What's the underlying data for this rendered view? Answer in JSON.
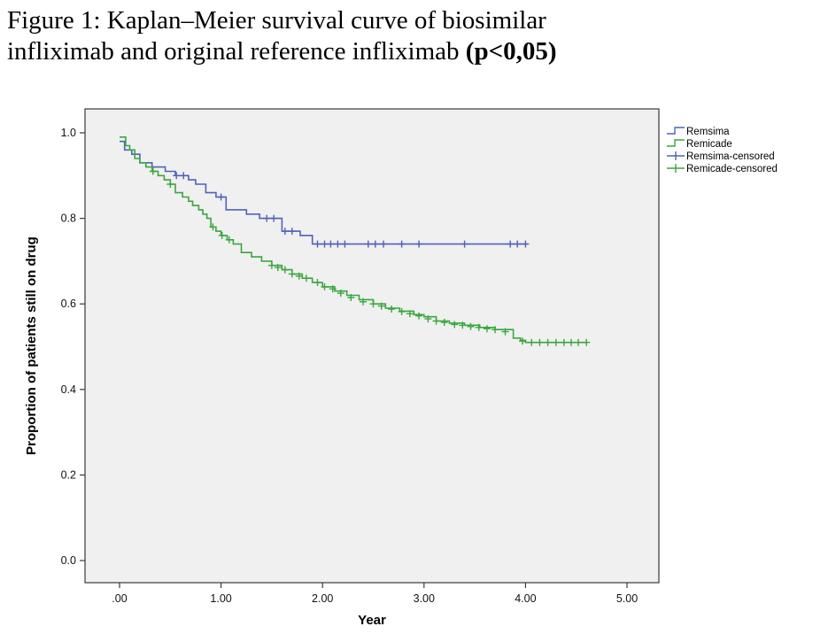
{
  "title": {
    "line1": "Figure 1: Kaplan–Meier survival curve of biosimilar",
    "line2_prefix": "infliximab and original reference infliximab ",
    "line2_bold": "(p<0,05)",
    "line2_suffix": ""
  },
  "chart_data": {
    "type": "line",
    "subtype": "kaplan_meier_step",
    "title": "Kaplan–Meier survival curve of biosimilar infliximab and original reference infliximab (p<0,05)",
    "xlabel": "Year",
    "ylabel": "Proportion of patients still on drug",
    "xlim": [
      -0.35,
      5.3
    ],
    "ylim": [
      -0.05,
      1.05
    ],
    "grid": false,
    "legend_position": "right",
    "plot_bg": "#f0f0f0",
    "xtick_labels": [
      ".00",
      "1.00",
      "2.00",
      "3.00",
      "4.00",
      "5.00"
    ],
    "xtick_values": [
      0,
      1,
      2,
      3,
      4,
      5
    ],
    "ytick_labels": [
      "0.0",
      "0.2",
      "0.4",
      "0.6",
      "0.8",
      "1.0"
    ],
    "ytick_values": [
      0,
      0.2,
      0.4,
      0.6,
      0.8,
      1.0
    ],
    "series": [
      {
        "name": "Remsima",
        "color": "#4f63b8",
        "steps": [
          [
            0,
            0.98
          ],
          [
            0.05,
            0.96
          ],
          [
            0.12,
            0.95
          ],
          [
            0.2,
            0.93
          ],
          [
            0.32,
            0.92
          ],
          [
            0.45,
            0.91
          ],
          [
            0.55,
            0.9
          ],
          [
            0.68,
            0.89
          ],
          [
            0.75,
            0.88
          ],
          [
            0.85,
            0.86
          ],
          [
            0.95,
            0.85
          ],
          [
            1.05,
            0.82
          ],
          [
            1.25,
            0.81
          ],
          [
            1.38,
            0.8
          ],
          [
            1.6,
            0.77
          ],
          [
            1.78,
            0.76
          ],
          [
            1.9,
            0.74
          ],
          [
            4.02,
            0.74
          ]
        ],
        "censored": [
          [
            0.56,
            0.9
          ],
          [
            0.63,
            0.9
          ],
          [
            1.0,
            0.85
          ],
          [
            1.45,
            0.8
          ],
          [
            1.52,
            0.8
          ],
          [
            1.63,
            0.77
          ],
          [
            1.7,
            0.77
          ],
          [
            1.95,
            0.74
          ],
          [
            2.02,
            0.74
          ],
          [
            2.08,
            0.74
          ],
          [
            2.15,
            0.74
          ],
          [
            2.22,
            0.74
          ],
          [
            2.45,
            0.74
          ],
          [
            2.52,
            0.74
          ],
          [
            2.6,
            0.74
          ],
          [
            2.78,
            0.74
          ],
          [
            2.95,
            0.74
          ],
          [
            3.4,
            0.74
          ],
          [
            3.85,
            0.74
          ],
          [
            3.92,
            0.74
          ],
          [
            4.0,
            0.74
          ]
        ]
      },
      {
        "name": "Remicade",
        "color": "#3aa63e",
        "steps": [
          [
            0,
            0.99
          ],
          [
            0.06,
            0.97
          ],
          [
            0.1,
            0.96
          ],
          [
            0.15,
            0.94
          ],
          [
            0.2,
            0.93
          ],
          [
            0.26,
            0.92
          ],
          [
            0.32,
            0.91
          ],
          [
            0.38,
            0.9
          ],
          [
            0.44,
            0.89
          ],
          [
            0.5,
            0.88
          ],
          [
            0.55,
            0.86
          ],
          [
            0.62,
            0.85
          ],
          [
            0.68,
            0.84
          ],
          [
            0.72,
            0.83
          ],
          [
            0.78,
            0.82
          ],
          [
            0.82,
            0.81
          ],
          [
            0.86,
            0.8
          ],
          [
            0.9,
            0.78
          ],
          [
            0.95,
            0.77
          ],
          [
            1.0,
            0.76
          ],
          [
            1.06,
            0.75
          ],
          [
            1.12,
            0.74
          ],
          [
            1.2,
            0.72
          ],
          [
            1.3,
            0.71
          ],
          [
            1.4,
            0.7
          ],
          [
            1.5,
            0.69
          ],
          [
            1.6,
            0.68
          ],
          [
            1.7,
            0.67
          ],
          [
            1.8,
            0.66
          ],
          [
            1.9,
            0.65
          ],
          [
            2.0,
            0.64
          ],
          [
            2.12,
            0.63
          ],
          [
            2.24,
            0.62
          ],
          [
            2.36,
            0.61
          ],
          [
            2.5,
            0.6
          ],
          [
            2.62,
            0.59
          ],
          [
            2.76,
            0.583
          ],
          [
            2.9,
            0.575
          ],
          [
            3.0,
            0.57
          ],
          [
            3.12,
            0.56
          ],
          [
            3.25,
            0.555
          ],
          [
            3.4,
            0.55
          ],
          [
            3.55,
            0.545
          ],
          [
            3.7,
            0.54
          ],
          [
            3.88,
            0.52
          ],
          [
            3.95,
            0.515
          ],
          [
            4.0,
            0.51
          ],
          [
            4.6,
            0.51
          ]
        ],
        "censored": [
          [
            0.33,
            0.91
          ],
          [
            0.5,
            0.88
          ],
          [
            0.92,
            0.78
          ],
          [
            1.01,
            0.76
          ],
          [
            1.08,
            0.75
          ],
          [
            1.5,
            0.69
          ],
          [
            1.56,
            0.685
          ],
          [
            1.63,
            0.68
          ],
          [
            1.7,
            0.67
          ],
          [
            1.77,
            0.665
          ],
          [
            1.84,
            0.66
          ],
          [
            1.95,
            0.65
          ],
          [
            2.02,
            0.64
          ],
          [
            2.1,
            0.635
          ],
          [
            2.18,
            0.625
          ],
          [
            2.28,
            0.615
          ],
          [
            2.4,
            0.605
          ],
          [
            2.5,
            0.6
          ],
          [
            2.58,
            0.595
          ],
          [
            2.68,
            0.588
          ],
          [
            2.78,
            0.582
          ],
          [
            2.86,
            0.577
          ],
          [
            2.95,
            0.572
          ],
          [
            3.04,
            0.565
          ],
          [
            3.12,
            0.56
          ],
          [
            3.2,
            0.557
          ],
          [
            3.3,
            0.552
          ],
          [
            3.38,
            0.55
          ],
          [
            3.46,
            0.547
          ],
          [
            3.54,
            0.545
          ],
          [
            3.62,
            0.542
          ],
          [
            3.7,
            0.54
          ],
          [
            3.8,
            0.535
          ],
          [
            3.97,
            0.513
          ],
          [
            4.06,
            0.51
          ],
          [
            4.14,
            0.51
          ],
          [
            4.22,
            0.51
          ],
          [
            4.3,
            0.51
          ],
          [
            4.38,
            0.51
          ],
          [
            4.45,
            0.51
          ],
          [
            4.52,
            0.51
          ],
          [
            4.6,
            0.51
          ]
        ]
      }
    ],
    "legend": [
      {
        "label": "Remsima",
        "type": "step",
        "color": "#4f63b8"
      },
      {
        "label": "Remicade",
        "type": "step",
        "color": "#3aa63e"
      },
      {
        "label": "Remsima-censored",
        "type": "censored",
        "color": "#4f63b8"
      },
      {
        "label": "Remicade-censored",
        "type": "censored",
        "color": "#3aa63e"
      }
    ]
  }
}
